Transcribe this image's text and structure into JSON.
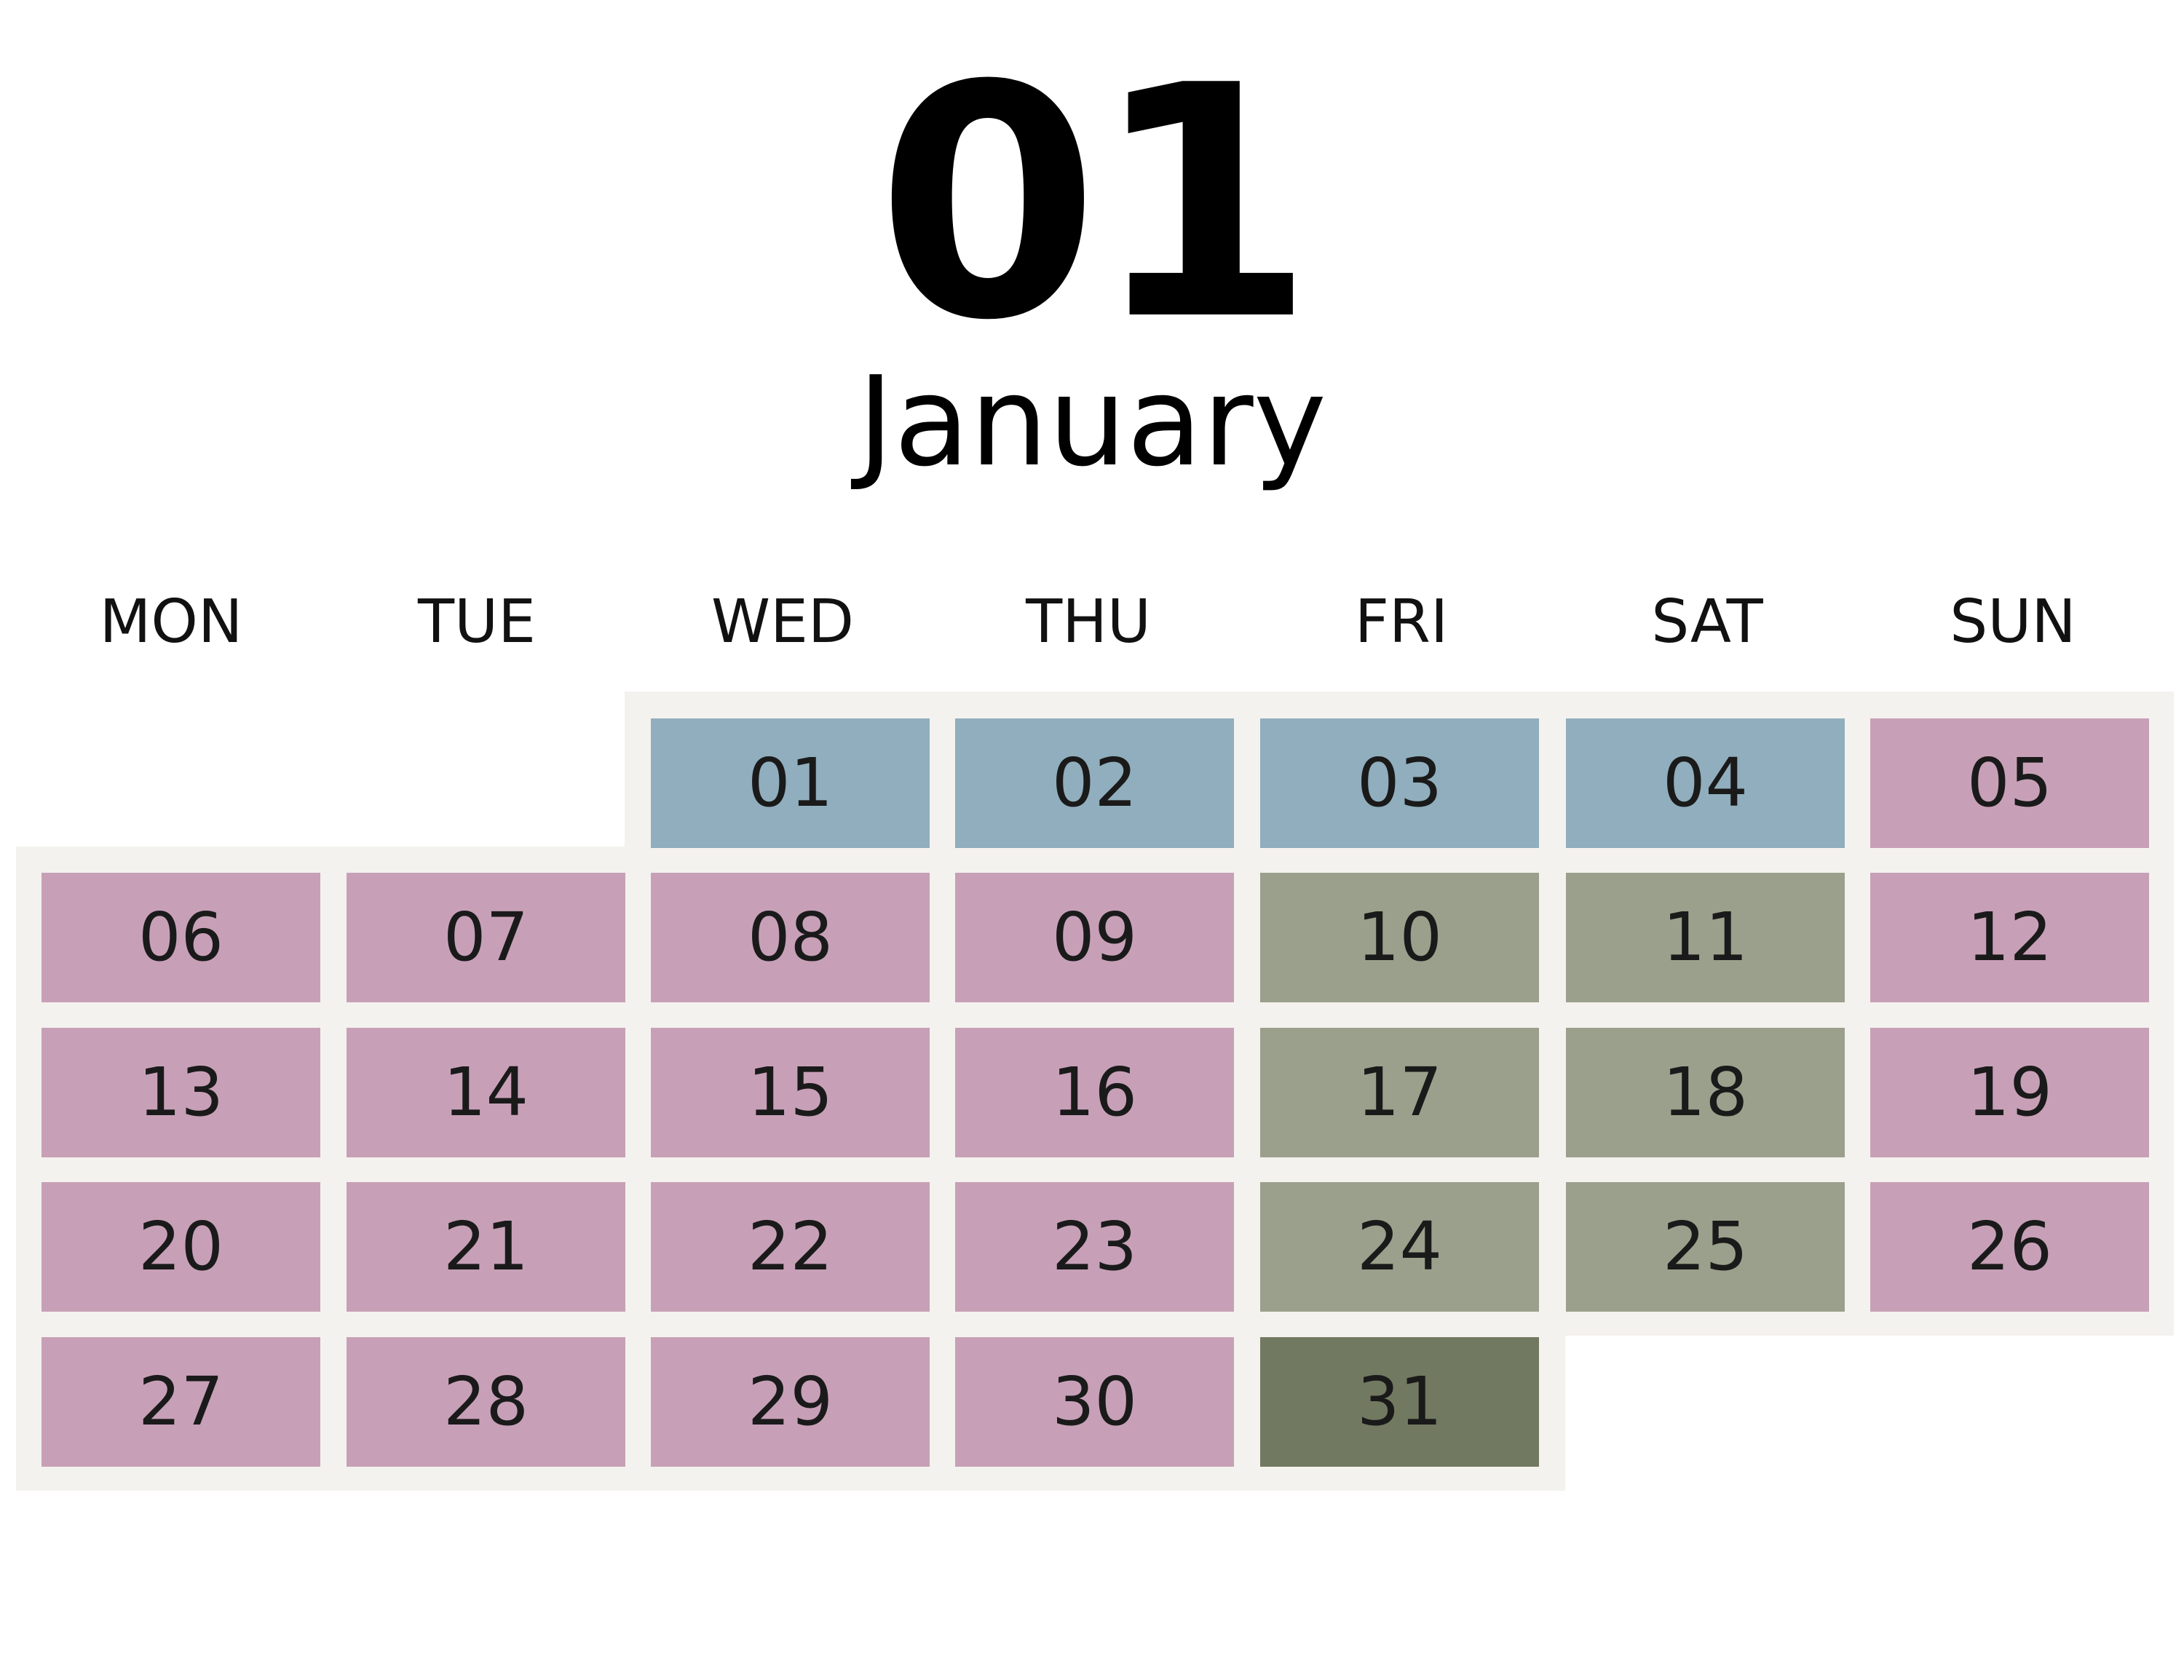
{
  "header": {
    "month_number": "01",
    "month_name": "January"
  },
  "weekdays": [
    "MON",
    "TUE",
    "WED",
    "THU",
    "FRI",
    "SAT",
    "SUN"
  ],
  "colors": {
    "blue": "#90aebd",
    "pink": "#c7a0b7",
    "sage": "#9ba08c",
    "olive": "#727961",
    "band": "#f4f2ee"
  },
  "days": [
    {
      "label": "01",
      "col": 2,
      "row": 0,
      "color": "blue"
    },
    {
      "label": "02",
      "col": 3,
      "row": 0,
      "color": "blue"
    },
    {
      "label": "03",
      "col": 4,
      "row": 0,
      "color": "blue"
    },
    {
      "label": "04",
      "col": 5,
      "row": 0,
      "color": "blue"
    },
    {
      "label": "05",
      "col": 6,
      "row": 0,
      "color": "pink"
    },
    {
      "label": "06",
      "col": 0,
      "row": 1,
      "color": "pink"
    },
    {
      "label": "07",
      "col": 1,
      "row": 1,
      "color": "pink"
    },
    {
      "label": "08",
      "col": 2,
      "row": 1,
      "color": "pink"
    },
    {
      "label": "09",
      "col": 3,
      "row": 1,
      "color": "pink"
    },
    {
      "label": "10",
      "col": 4,
      "row": 1,
      "color": "sage"
    },
    {
      "label": "11",
      "col": 5,
      "row": 1,
      "color": "sage"
    },
    {
      "label": "12",
      "col": 6,
      "row": 1,
      "color": "pink"
    },
    {
      "label": "13",
      "col": 0,
      "row": 2,
      "color": "pink"
    },
    {
      "label": "14",
      "col": 1,
      "row": 2,
      "color": "pink"
    },
    {
      "label": "15",
      "col": 2,
      "row": 2,
      "color": "pink"
    },
    {
      "label": "16",
      "col": 3,
      "row": 2,
      "color": "pink"
    },
    {
      "label": "17",
      "col": 4,
      "row": 2,
      "color": "sage"
    },
    {
      "label": "18",
      "col": 5,
      "row": 2,
      "color": "sage"
    },
    {
      "label": "19",
      "col": 6,
      "row": 2,
      "color": "pink"
    },
    {
      "label": "20",
      "col": 0,
      "row": 3,
      "color": "pink"
    },
    {
      "label": "21",
      "col": 1,
      "row": 3,
      "color": "pink"
    },
    {
      "label": "22",
      "col": 2,
      "row": 3,
      "color": "pink"
    },
    {
      "label": "23",
      "col": 3,
      "row": 3,
      "color": "pink"
    },
    {
      "label": "24",
      "col": 4,
      "row": 3,
      "color": "sage"
    },
    {
      "label": "25",
      "col": 5,
      "row": 3,
      "color": "sage"
    },
    {
      "label": "26",
      "col": 6,
      "row": 3,
      "color": "pink"
    },
    {
      "label": "27",
      "col": 0,
      "row": 4,
      "color": "pink"
    },
    {
      "label": "28",
      "col": 1,
      "row": 4,
      "color": "pink"
    },
    {
      "label": "29",
      "col": 2,
      "row": 4,
      "color": "pink"
    },
    {
      "label": "30",
      "col": 3,
      "row": 4,
      "color": "pink"
    },
    {
      "label": "31",
      "col": 4,
      "row": 4,
      "color": "olive"
    }
  ]
}
